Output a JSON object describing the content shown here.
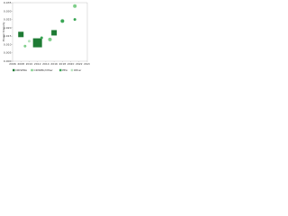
{
  "chart_data": {
    "type": "scatter",
    "ylabel": "Power Density",
    "xlim": [
      2006,
      2024
    ],
    "xticks": [
      2006,
      2008,
      2010,
      2012,
      2014,
      2016,
      2018,
      2020,
      2022,
      2024
    ],
    "ylim": [
      0,
      0.035
    ],
    "yticks": [
      {
        "value": 0,
        "label": "0.000"
      },
      {
        "value": 0.005,
        "label": "0.005"
      },
      {
        "value": 0.01,
        "label": "0.010"
      },
      {
        "value": 0.015,
        "label": "0.015"
      },
      {
        "value": 0.02,
        "label": "0.020"
      },
      {
        "value": 0.025,
        "label": "0.025"
      },
      {
        "value": 0.03,
        "label": "0.030"
      },
      {
        "value": 0.035,
        "label": "0.035"
      }
    ],
    "legend": "bottom",
    "series": [
      {
        "name": "CRISPRA",
        "color": "#1e7b34",
        "marker": "square",
        "x": [
          2008,
          2012,
          2016
        ],
        "values": [
          0.016,
          0.011,
          0.017
        ],
        "sizes": [
          3,
          5,
          3
        ]
      },
      {
        "name": "CRISPRi/Other",
        "color": "#7fcf8a",
        "marker": "circle",
        "x": [
          2009,
          2015,
          2021
        ],
        "values": [
          0.009,
          0.013,
          0.033
        ],
        "sizes": [
          1.5,
          2,
          2
        ]
      },
      {
        "name": "PEA",
        "color": "#3aa655",
        "marker": "circle",
        "x": [
          2013,
          2018,
          2021
        ],
        "values": [
          0.014,
          0.024,
          0.025
        ],
        "sizes": [
          1.5,
          2,
          1.5
        ]
      },
      {
        "name": "Other",
        "color": "#b7e3bd",
        "marker": "circle",
        "x": [
          2010
        ],
        "values": [
          0.012
        ],
        "sizes": [
          1.5
        ]
      }
    ]
  }
}
